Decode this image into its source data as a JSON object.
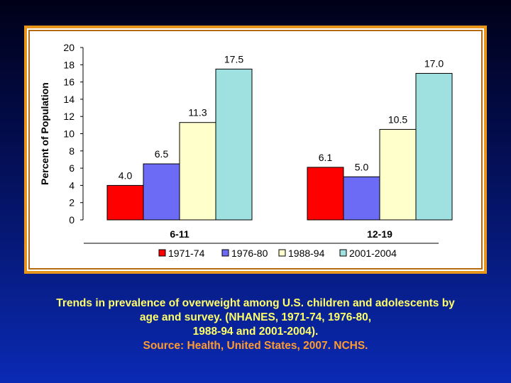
{
  "chart_data": {
    "type": "bar",
    "categories": [
      "6-11",
      "12-19"
    ],
    "series": [
      {
        "name": "1971-74",
        "color": "#ff0000",
        "values": [
          4.0,
          6.1
        ]
      },
      {
        "name": "1976-80",
        "color": "#6b6bf5",
        "values": [
          6.5,
          5.0
        ]
      },
      {
        "name": "1988-94",
        "color": "#ffffcc",
        "values": [
          11.3,
          10.5
        ]
      },
      {
        "name": "2001-2004",
        "color": "#9fe0e0",
        "values": [
          17.5,
          17.0
        ]
      }
    ],
    "value_labels": [
      [
        "4.0",
        "6.1"
      ],
      [
        "6.5",
        "5.0"
      ],
      [
        "11.3",
        "10.5"
      ],
      [
        "17.5",
        "17.0"
      ]
    ],
    "ylabel": "Percent of Population",
    "xlabel": "",
    "ylim": [
      0,
      20
    ],
    "yticks": [
      0,
      2,
      4,
      6,
      8,
      10,
      12,
      14,
      16,
      18,
      20
    ],
    "legend_position": "bottom",
    "grid": false
  },
  "caption": {
    "lines": [
      "Trends in prevalence of overweight among U.S. children and adolescents by",
      "age and survey. (NHANES, 1971-74, 1976-80,",
      "1988-94 and 2001-2004)."
    ],
    "source": "Source: Health, United States, 2007. NCHS."
  }
}
